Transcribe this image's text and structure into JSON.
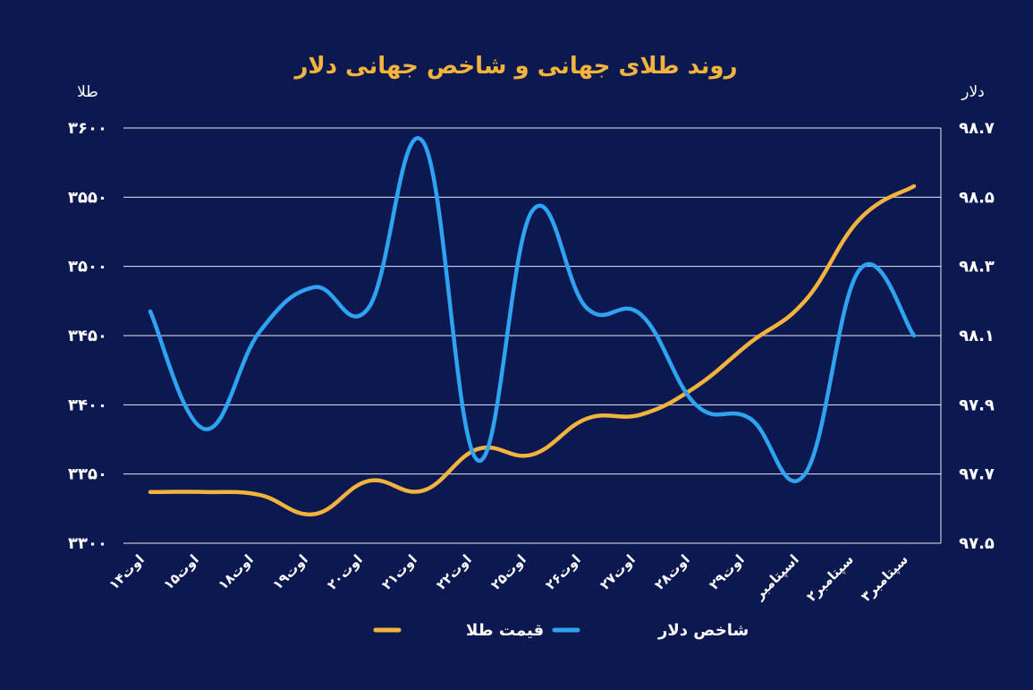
{
  "chart_data": {
    "type": "line",
    "title": "روند طلای جهانی و شاخص جهانی دلار",
    "left_axis_label": "طلا",
    "right_axis_label": "دلار",
    "left_ticks": [
      "۳۳۰۰",
      "۳۳۵۰",
      "۳۴۰۰",
      "۳۴۵۰",
      "۳۵۰۰",
      "۳۵۵۰",
      "۳۶۰۰"
    ],
    "right_ticks": [
      "۹۷.۵",
      "۹۷.۷",
      "۹۷.۹",
      "۹۸.۱",
      "۹۸.۳",
      "۹۸.۵",
      "۹۸.۷"
    ],
    "left_range": [
      3300,
      3600
    ],
    "right_range": [
      97.5,
      98.7
    ],
    "categories": [
      "۱۴اوت",
      "۱۵اوت",
      "۱۸اوت",
      "۱۹اوت",
      "۲۰اوت",
      "۲۱اوت",
      "۲۲اوت",
      "۲۵اوت",
      "۲۶اوت",
      "۲۷اوت",
      "۲۸اوت",
      "۲۹اوت",
      "اسپتامبر",
      "۲سپتامبر",
      "۳سپتامبر"
    ],
    "series": [
      {
        "name": "قیمت طلا",
        "axis": "left",
        "color": "#f3b33d",
        "values": [
          3337,
          3337,
          3335,
          3321,
          3345,
          3338,
          3368,
          3364,
          3390,
          3393,
          3413,
          3445,
          3475,
          3534,
          3558
        ]
      },
      {
        "name": "شاخص دلار",
        "axis": "right",
        "color": "#2ea3f2",
        "values": [
          98.17,
          97.83,
          98.11,
          98.24,
          98.18,
          98.66,
          97.74,
          98.46,
          98.18,
          98.16,
          97.9,
          97.86,
          97.7,
          98.29,
          98.1
        ]
      }
    ],
    "grid": true,
    "legend_position": "bottom-center"
  }
}
